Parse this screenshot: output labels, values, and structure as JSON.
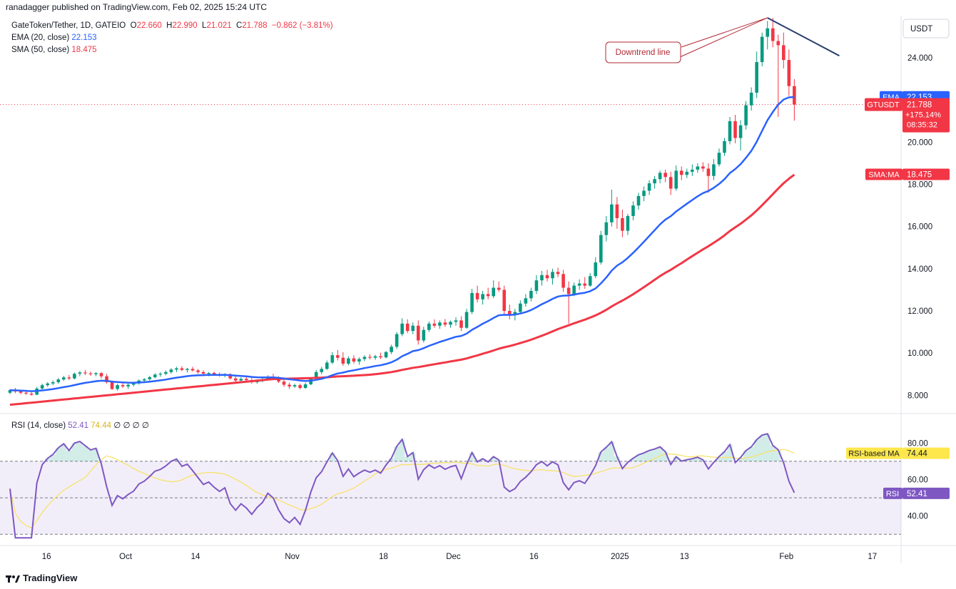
{
  "header": {
    "publisher": "ranadagger published on TradingView.com, Feb 02, 2025 15:24 UTC"
  },
  "legend": {
    "symbol": "GateToken/Tether, 1D, GATEIO",
    "o_label": "O",
    "o_value": "22.660",
    "h_label": "H",
    "h_value": "22.990",
    "l_label": "L",
    "l_value": "21.021",
    "c_label": "C",
    "c_value": "21.788",
    "change": "−0.862 (−3.81%)",
    "ema_label": "EMA (20, close)",
    "ema_value": "22.153",
    "sma_label": "SMA (50, close)",
    "sma_value": "18.475",
    "rsi_label": "RSI (14, close)",
    "rsi_value": "52.41",
    "rsi_ma_value": "74.44",
    "rsi_extra": "∅ ∅ ∅ ∅"
  },
  "price_axis": {
    "currency": "USDT",
    "ticks": [
      "24.000",
      "20.000",
      "18.000",
      "16.000",
      "14.000",
      "12.000",
      "10.000",
      "8.000"
    ],
    "tick_values": [
      24,
      20,
      18,
      16,
      14,
      12,
      10,
      8
    ]
  },
  "badges": {
    "ema_name": "EMA",
    "ema_value": "22.153",
    "symbol": "GTUSDT",
    "price": "21.788",
    "change_pct": "+175.14%",
    "countdown": "08:35:32",
    "sma_name": "SMA:MA",
    "sma_value": "18.475",
    "rsi_ma_name": "RSI-based MA",
    "rsi_ma_value": "74.44",
    "rsi_name": "RSI",
    "rsi_value": "52.41"
  },
  "rsi_axis": {
    "ticks": [
      "80.00",
      "60.00",
      "40.00"
    ],
    "tick_values": [
      80,
      60,
      40
    ]
  },
  "annotation": {
    "text": "Downtrend line"
  },
  "time_axis": {
    "labels": [
      "16",
      "Oct",
      "14",
      "Nov",
      "18",
      "Dec",
      "16",
      "2025",
      "13",
      "Feb",
      "17"
    ]
  },
  "footer": {
    "brand": "TradingView"
  },
  "colors": {
    "up": "#089981",
    "down": "#f23645",
    "ema": "#2962ff",
    "sma": "#f23645",
    "rsi": "#7e57c2",
    "rsi_ma": "#f7e26b",
    "trendline": "#2a3f6e"
  },
  "chart_data": {
    "type": "candlestick",
    "symbol": "GateToken/Tether, 1D, GATEIO",
    "x_range": [
      "2024-09-10",
      "2025-02-02"
    ],
    "ylim": [
      7.2,
      26.0
    ],
    "candles": [
      [
        "2024-09-10",
        8.12,
        8.3,
        8.05,
        8.24
      ],
      [
        "2024-09-11",
        8.24,
        8.35,
        8.1,
        8.18
      ],
      [
        "2024-09-12",
        8.18,
        8.22,
        8.05,
        8.12
      ],
      [
        "2024-09-13",
        8.12,
        8.2,
        8.02,
        8.08
      ],
      [
        "2024-09-14",
        8.08,
        8.15,
        7.98,
        8.03
      ],
      [
        "2024-09-15",
        8.03,
        8.4,
        8.0,
        8.32
      ],
      [
        "2024-09-16",
        8.32,
        8.55,
        8.28,
        8.48
      ],
      [
        "2024-09-17",
        8.48,
        8.62,
        8.4,
        8.56
      ],
      [
        "2024-09-18",
        8.56,
        8.7,
        8.48,
        8.62
      ],
      [
        "2024-09-19",
        8.62,
        8.82,
        8.55,
        8.75
      ],
      [
        "2024-09-20",
        8.75,
        8.92,
        8.68,
        8.85
      ],
      [
        "2024-09-21",
        8.85,
        8.96,
        8.72,
        8.8
      ],
      [
        "2024-09-22",
        8.8,
        9.08,
        8.75,
        9.02
      ],
      [
        "2024-09-23",
        9.02,
        9.15,
        8.9,
        9.08
      ],
      [
        "2024-09-24",
        9.08,
        9.2,
        8.96,
        9.04
      ],
      [
        "2024-09-25",
        9.04,
        9.12,
        8.92,
        9.0
      ],
      [
        "2024-09-26",
        9.0,
        9.1,
        8.9,
        9.05
      ],
      [
        "2024-09-27",
        9.05,
        9.1,
        8.8,
        8.9
      ],
      [
        "2024-09-28",
        8.9,
        9.02,
        8.55,
        8.62
      ],
      [
        "2024-09-29",
        8.62,
        8.7,
        8.25,
        8.3
      ],
      [
        "2024-09-30",
        8.3,
        8.55,
        8.22,
        8.48
      ],
      [
        "2024-10-01",
        8.48,
        8.6,
        8.35,
        8.42
      ],
      [
        "2024-10-02",
        8.42,
        8.55,
        8.3,
        8.5
      ],
      [
        "2024-10-03",
        8.5,
        8.62,
        8.42,
        8.56
      ],
      [
        "2024-10-04",
        8.56,
        8.75,
        8.5,
        8.7
      ],
      [
        "2024-10-05",
        8.7,
        8.82,
        8.6,
        8.76
      ],
      [
        "2024-10-06",
        8.76,
        8.92,
        8.7,
        8.86
      ],
      [
        "2024-10-07",
        8.86,
        9.05,
        8.8,
        8.98
      ],
      [
        "2024-10-08",
        8.98,
        9.1,
        8.88,
        9.02
      ],
      [
        "2024-10-09",
        9.02,
        9.18,
        8.95,
        9.1
      ],
      [
        "2024-10-10",
        9.1,
        9.28,
        9.02,
        9.22
      ],
      [
        "2024-10-11",
        9.22,
        9.35,
        9.1,
        9.28
      ],
      [
        "2024-10-12",
        9.28,
        9.38,
        9.15,
        9.2
      ],
      [
        "2024-10-13",
        9.2,
        9.3,
        9.08,
        9.25
      ],
      [
        "2024-10-14",
        9.25,
        9.35,
        9.12,
        9.18
      ],
      [
        "2024-10-15",
        9.18,
        9.25,
        9.02,
        9.1
      ],
      [
        "2024-10-16",
        9.1,
        9.18,
        8.95,
        9.02
      ],
      [
        "2024-10-17",
        9.02,
        9.1,
        8.9,
        9.06
      ],
      [
        "2024-10-18",
        9.06,
        9.12,
        8.95,
        9.0
      ],
      [
        "2024-10-19",
        9.0,
        9.08,
        8.88,
        8.95
      ],
      [
        "2024-10-20",
        8.95,
        9.05,
        8.85,
        9.0
      ],
      [
        "2024-10-21",
        9.0,
        9.05,
        8.75,
        8.8
      ],
      [
        "2024-10-22",
        8.8,
        8.9,
        8.62,
        8.7
      ],
      [
        "2024-10-23",
        8.7,
        8.85,
        8.6,
        8.78
      ],
      [
        "2024-10-24",
        8.78,
        8.88,
        8.65,
        8.72
      ],
      [
        "2024-10-25",
        8.72,
        8.82,
        8.55,
        8.62
      ],
      [
        "2024-10-26",
        8.62,
        8.75,
        8.55,
        8.7
      ],
      [
        "2024-10-27",
        8.7,
        8.82,
        8.62,
        8.76
      ],
      [
        "2024-10-28",
        8.76,
        8.95,
        8.7,
        8.88
      ],
      [
        "2024-10-29",
        8.88,
        9.02,
        8.78,
        8.82
      ],
      [
        "2024-10-30",
        8.82,
        8.9,
        8.58,
        8.65
      ],
      [
        "2024-10-31",
        8.65,
        8.72,
        8.4,
        8.5
      ],
      [
        "2024-11-01",
        8.5,
        8.6,
        8.3,
        8.42
      ],
      [
        "2024-11-02",
        8.42,
        8.55,
        8.35,
        8.48
      ],
      [
        "2024-11-03",
        8.48,
        8.55,
        8.28,
        8.35
      ],
      [
        "2024-11-04",
        8.35,
        8.6,
        8.3,
        8.52
      ],
      [
        "2024-11-05",
        8.52,
        8.85,
        8.48,
        8.8
      ],
      [
        "2024-11-06",
        8.8,
        9.2,
        8.75,
        9.1
      ],
      [
        "2024-11-07",
        9.1,
        9.35,
        9.0,
        9.25
      ],
      [
        "2024-11-08",
        9.25,
        9.65,
        9.2,
        9.55
      ],
      [
        "2024-11-09",
        9.55,
        10.05,
        9.48,
        9.9
      ],
      [
        "2024-11-10",
        9.9,
        10.15,
        9.65,
        9.78
      ],
      [
        "2024-11-11",
        9.78,
        10.05,
        9.4,
        9.5
      ],
      [
        "2024-11-12",
        9.5,
        9.85,
        9.42,
        9.75
      ],
      [
        "2024-11-13",
        9.75,
        9.9,
        9.5,
        9.6
      ],
      [
        "2024-11-14",
        9.6,
        9.8,
        9.45,
        9.72
      ],
      [
        "2024-11-15",
        9.72,
        9.9,
        9.62,
        9.82
      ],
      [
        "2024-11-16",
        9.82,
        9.95,
        9.7,
        9.78
      ],
      [
        "2024-11-17",
        9.78,
        9.92,
        9.68,
        9.85
      ],
      [
        "2024-11-18",
        9.85,
        10.02,
        9.72,
        9.8
      ],
      [
        "2024-11-19",
        9.8,
        10.1,
        9.75,
        10.05
      ],
      [
        "2024-11-20",
        10.05,
        10.4,
        9.95,
        10.3
      ],
      [
        "2024-11-21",
        10.3,
        11.0,
        10.2,
        10.9
      ],
      [
        "2024-11-22",
        10.9,
        11.65,
        10.8,
        11.4
      ],
      [
        "2024-11-23",
        11.4,
        11.6,
        10.95,
        11.05
      ],
      [
        "2024-11-24",
        11.05,
        11.45,
        10.9,
        11.3
      ],
      [
        "2024-11-25",
        11.3,
        11.55,
        10.4,
        10.6
      ],
      [
        "2024-11-26",
        10.6,
        11.25,
        10.5,
        11.1
      ],
      [
        "2024-11-27",
        11.1,
        11.5,
        11.0,
        11.4
      ],
      [
        "2024-11-28",
        11.4,
        11.6,
        11.2,
        11.3
      ],
      [
        "2024-11-29",
        11.3,
        11.55,
        11.15,
        11.45
      ],
      [
        "2024-11-30",
        11.45,
        11.62,
        11.25,
        11.35
      ],
      [
        "2024-12-01",
        11.35,
        11.55,
        11.2,
        11.48
      ],
      [
        "2024-12-02",
        11.48,
        11.7,
        11.3,
        11.55
      ],
      [
        "2024-12-03",
        11.55,
        11.75,
        11.05,
        11.2
      ],
      [
        "2024-12-04",
        11.2,
        12.1,
        11.15,
        11.95
      ],
      [
        "2024-12-05",
        11.95,
        13.05,
        11.85,
        12.85
      ],
      [
        "2024-12-06",
        12.85,
        13.2,
        12.4,
        12.55
      ],
      [
        "2024-12-07",
        12.55,
        12.95,
        12.3,
        12.8
      ],
      [
        "2024-12-08",
        12.8,
        13.1,
        12.55,
        12.7
      ],
      [
        "2024-12-09",
        12.7,
        13.45,
        12.6,
        13.1
      ],
      [
        "2024-12-10",
        13.1,
        13.4,
        12.9,
        13.0
      ],
      [
        "2024-12-11",
        13.0,
        13.2,
        11.8,
        12.0
      ],
      [
        "2024-12-12",
        12.0,
        12.3,
        11.6,
        11.8
      ],
      [
        "2024-12-13",
        11.8,
        12.1,
        11.55,
        11.95
      ],
      [
        "2024-12-14",
        11.95,
        12.5,
        11.85,
        12.35
      ],
      [
        "2024-12-15",
        12.35,
        12.8,
        12.2,
        12.6
      ],
      [
        "2024-12-16",
        12.6,
        13.1,
        12.45,
        12.95
      ],
      [
        "2024-12-17",
        12.95,
        13.7,
        12.8,
        13.45
      ],
      [
        "2024-12-18",
        13.45,
        13.9,
        13.2,
        13.7
      ],
      [
        "2024-12-19",
        13.7,
        13.95,
        13.4,
        13.55
      ],
      [
        "2024-12-20",
        13.55,
        14.0,
        13.25,
        13.85
      ],
      [
        "2024-12-21",
        13.85,
        14.05,
        13.6,
        13.75
      ],
      [
        "2024-12-22",
        13.75,
        13.95,
        12.9,
        13.1
      ],
      [
        "2024-12-23",
        13.1,
        13.4,
        11.4,
        12.8
      ],
      [
        "2024-12-24",
        12.8,
        13.35,
        12.7,
        13.2
      ],
      [
        "2024-12-25",
        13.2,
        13.5,
        13.0,
        13.3
      ],
      [
        "2024-12-26",
        13.3,
        13.6,
        13.05,
        13.2
      ],
      [
        "2024-12-27",
        13.2,
        13.8,
        13.15,
        13.65
      ],
      [
        "2024-12-28",
        13.65,
        14.55,
        13.55,
        14.3
      ],
      [
        "2024-12-29",
        14.3,
        15.8,
        14.2,
        15.6
      ],
      [
        "2024-12-30",
        15.6,
        16.5,
        15.3,
        16.2
      ],
      [
        "2024-12-31",
        16.2,
        17.75,
        16.0,
        17.05
      ],
      [
        "2025-01-01",
        17.05,
        17.4,
        15.9,
        16.4
      ],
      [
        "2025-01-02",
        16.4,
        16.8,
        15.5,
        15.8
      ],
      [
        "2025-01-03",
        15.8,
        16.6,
        15.6,
        16.5
      ],
      [
        "2025-01-04",
        16.5,
        17.2,
        16.3,
        17.0
      ],
      [
        "2025-01-05",
        17.0,
        17.6,
        16.8,
        17.45
      ],
      [
        "2025-01-06",
        17.45,
        17.9,
        17.2,
        17.7
      ],
      [
        "2025-01-07",
        17.7,
        18.2,
        17.5,
        18.05
      ],
      [
        "2025-01-08",
        18.05,
        18.4,
        17.8,
        18.25
      ],
      [
        "2025-01-09",
        18.25,
        18.65,
        18.05,
        18.55
      ],
      [
        "2025-01-10",
        18.55,
        18.7,
        18.1,
        18.35
      ],
      [
        "2025-01-11",
        18.35,
        18.6,
        17.5,
        17.8
      ],
      [
        "2025-01-12",
        17.8,
        18.9,
        17.7,
        18.65
      ],
      [
        "2025-01-13",
        18.65,
        18.85,
        18.2,
        18.45
      ],
      [
        "2025-01-14",
        18.45,
        18.75,
        18.3,
        18.6
      ],
      [
        "2025-01-15",
        18.6,
        18.95,
        18.4,
        18.7
      ],
      [
        "2025-01-16",
        18.7,
        19.0,
        18.55,
        18.85
      ],
      [
        "2025-01-17",
        18.85,
        19.05,
        18.6,
        18.75
      ],
      [
        "2025-01-18",
        18.75,
        19.0,
        17.6,
        18.4
      ],
      [
        "2025-01-19",
        18.4,
        19.2,
        18.2,
        18.95
      ],
      [
        "2025-01-20",
        18.95,
        19.7,
        18.85,
        19.5
      ],
      [
        "2025-01-21",
        19.5,
        20.2,
        19.35,
        20.05
      ],
      [
        "2025-01-22",
        20.05,
        21.2,
        19.9,
        21.0
      ],
      [
        "2025-01-23",
        21.0,
        21.3,
        19.95,
        20.2
      ],
      [
        "2025-01-24",
        20.2,
        21.05,
        19.6,
        20.8
      ],
      [
        "2025-01-25",
        20.8,
        21.95,
        20.6,
        21.75
      ],
      [
        "2025-01-26",
        21.75,
        22.6,
        21.5,
        22.35
      ],
      [
        "2025-01-27",
        22.35,
        24.3,
        22.1,
        23.8
      ],
      [
        "2025-01-28",
        23.8,
        25.2,
        23.6,
        25.0
      ],
      [
        "2025-01-29",
        25.0,
        25.75,
        24.4,
        25.4
      ],
      [
        "2025-01-30",
        25.4,
        25.9,
        24.5,
        24.8
      ],
      [
        "2025-01-31",
        24.8,
        25.1,
        21.2,
        24.6
      ],
      [
        "2025-02-01",
        24.6,
        25.2,
        23.5,
        23.9
      ],
      [
        "2025-02-02",
        23.9,
        24.4,
        22.2,
        22.66
      ],
      [
        "2025-02-03",
        22.66,
        22.99,
        21.021,
        21.788
      ]
    ],
    "ema": {
      "name": "EMA (20, close)",
      "last": 22.153
    },
    "sma": {
      "name": "SMA (50, close)",
      "last": 18.475
    },
    "rsi": {
      "name": "RSI (14, close)",
      "last": 52.41,
      "ma_last": 74.44,
      "ylim": [
        25,
        95
      ],
      "bands": [
        70,
        50,
        30
      ]
    },
    "annotations": [
      {
        "type": "trendline",
        "text": "Downtrend line",
        "from": [
          "2025-01-29",
          25.9
        ],
        "to": [
          "2025-02-05",
          24.1
        ]
      }
    ],
    "x_labels": [
      "16",
      "Oct",
      "14",
      "Nov",
      "18",
      "Dec",
      "16",
      "2025",
      "13",
      "Feb",
      "17"
    ]
  }
}
